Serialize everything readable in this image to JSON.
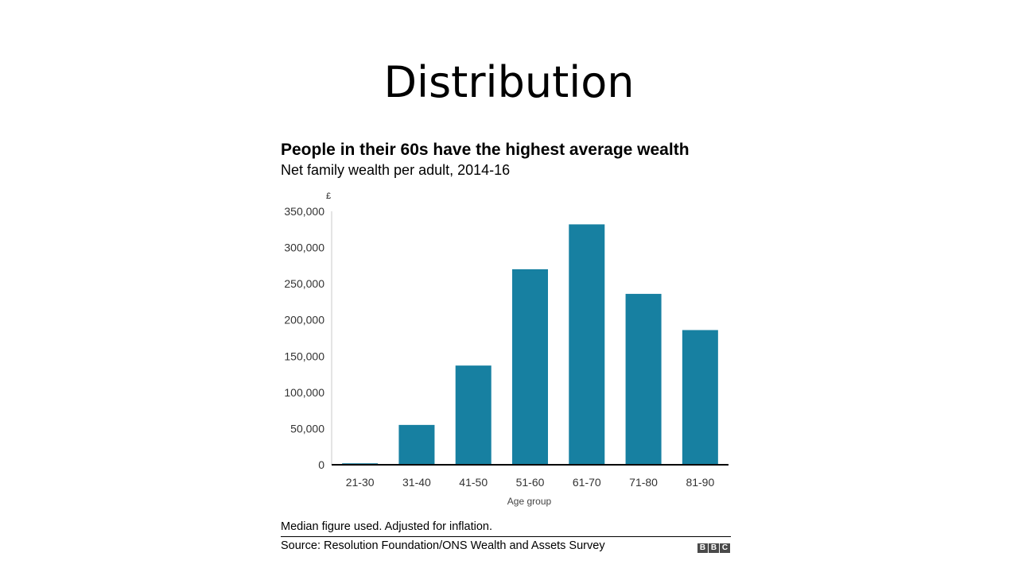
{
  "slide": {
    "title": "Distribution"
  },
  "chart_data": {
    "type": "bar",
    "title": "People in their 60s have the highest average wealth",
    "subtitle": "Net family wealth per adult, 2014-16",
    "ylabel": "£",
    "xlabel": "Age group",
    "categories": [
      "21-30",
      "31-40",
      "41-50",
      "51-60",
      "61-70",
      "71-80",
      "81-90"
    ],
    "values": [
      2000,
      55000,
      137000,
      270000,
      332000,
      236000,
      186000
    ],
    "ylim": [
      0,
      350000
    ],
    "yticks": [
      0,
      50000,
      100000,
      150000,
      200000,
      250000,
      300000,
      350000
    ],
    "ytick_labels": [
      "0",
      "50,000",
      "100,000",
      "150,000",
      "200,000",
      "250,000",
      "300,000",
      "350,000"
    ],
    "grid": false,
    "legend": "none",
    "bar_color": "#1780a1",
    "footnote": "Median figure used. Adjusted for inflation.",
    "source": "Source: Resolution Foundation/ONS Wealth and Assets Survey"
  },
  "logo": {
    "letters": [
      "B",
      "B",
      "C"
    ]
  }
}
